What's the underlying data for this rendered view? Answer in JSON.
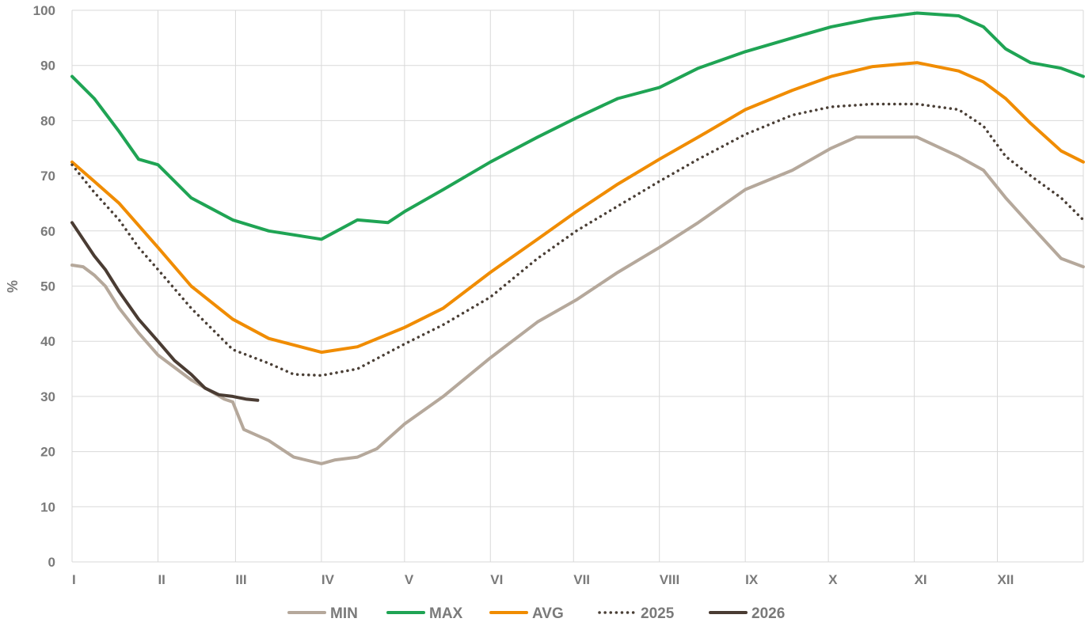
{
  "chart_data": {
    "type": "line",
    "title": "",
    "xlabel": "",
    "ylabel": "%",
    "ylim": [
      0,
      100
    ],
    "xlim_days": [
      0,
      365
    ],
    "y_ticks": [
      0,
      10,
      20,
      30,
      40,
      50,
      60,
      70,
      80,
      90,
      100
    ],
    "x_ticks": [
      {
        "label": "I",
        "day": 0
      },
      {
        "label": "II",
        "day": 31
      },
      {
        "label": "III",
        "day": 59
      },
      {
        "label": "IV",
        "day": 90
      },
      {
        "label": "V",
        "day": 120
      },
      {
        "label": "VI",
        "day": 151
      },
      {
        "label": "VII",
        "day": 181
      },
      {
        "label": "VIII",
        "day": 212
      },
      {
        "label": "IX",
        "day": 243
      },
      {
        "label": "X",
        "day": 273
      },
      {
        "label": "XI",
        "day": 304
      },
      {
        "label": "XII",
        "day": 334
      }
    ],
    "grid": true,
    "legend_position": "bottom",
    "series": [
      {
        "name": "MIN",
        "color": "#b5a89b",
        "style": "solid",
        "points": [
          [
            0,
            53.8
          ],
          [
            4,
            53.5
          ],
          [
            8,
            52
          ],
          [
            12,
            50
          ],
          [
            17,
            46
          ],
          [
            24,
            41.5
          ],
          [
            31,
            37.5
          ],
          [
            43,
            33
          ],
          [
            55,
            29.5
          ],
          [
            58,
            29
          ],
          [
            62,
            24
          ],
          [
            71,
            22
          ],
          [
            80,
            19
          ],
          [
            90,
            17.8
          ],
          [
            95,
            18.5
          ],
          [
            103,
            19
          ],
          [
            110,
            20.5
          ],
          [
            120,
            25
          ],
          [
            134,
            30
          ],
          [
            151,
            37
          ],
          [
            168,
            43.5
          ],
          [
            182,
            47.5
          ],
          [
            197,
            52.5
          ],
          [
            212,
            57
          ],
          [
            226,
            61.5
          ],
          [
            243,
            67.5
          ],
          [
            260,
            71
          ],
          [
            274,
            75
          ],
          [
            283,
            77
          ],
          [
            295,
            77
          ],
          [
            305,
            77
          ],
          [
            320,
            73.5
          ],
          [
            329,
            71
          ],
          [
            337,
            66
          ],
          [
            346,
            61
          ],
          [
            357,
            55
          ],
          [
            365,
            53.5
          ]
        ]
      },
      {
        "name": "MAX",
        "color": "#1fa454",
        "style": "solid",
        "points": [
          [
            0,
            88
          ],
          [
            8,
            84
          ],
          [
            17,
            78
          ],
          [
            24,
            73
          ],
          [
            31,
            72
          ],
          [
            43,
            66
          ],
          [
            58,
            62
          ],
          [
            71,
            60
          ],
          [
            90,
            58.5
          ],
          [
            103,
            62
          ],
          [
            114,
            61.5
          ],
          [
            120,
            63.5
          ],
          [
            134,
            67.5
          ],
          [
            151,
            72.5
          ],
          [
            168,
            77
          ],
          [
            182,
            80.5
          ],
          [
            197,
            84
          ],
          [
            212,
            86
          ],
          [
            226,
            89.5
          ],
          [
            243,
            92.5
          ],
          [
            260,
            95
          ],
          [
            274,
            97
          ],
          [
            289,
            98.5
          ],
          [
            305,
            99.5
          ],
          [
            320,
            99
          ],
          [
            329,
            97
          ],
          [
            337,
            93
          ],
          [
            346,
            90.5
          ],
          [
            357,
            89.5
          ],
          [
            365,
            88
          ]
        ]
      },
      {
        "name": "AVG",
        "color": "#f08c00",
        "style": "solid",
        "points": [
          [
            0,
            72.5
          ],
          [
            8,
            69
          ],
          [
            17,
            65
          ],
          [
            24,
            61
          ],
          [
            31,
            57
          ],
          [
            43,
            50
          ],
          [
            58,
            44
          ],
          [
            71,
            40.5
          ],
          [
            90,
            38
          ],
          [
            103,
            39
          ],
          [
            120,
            42.5
          ],
          [
            134,
            46
          ],
          [
            151,
            52.5
          ],
          [
            168,
            58.5
          ],
          [
            182,
            63.5
          ],
          [
            197,
            68.5
          ],
          [
            212,
            73
          ],
          [
            226,
            77
          ],
          [
            243,
            82
          ],
          [
            260,
            85.5
          ],
          [
            274,
            88
          ],
          [
            289,
            89.8
          ],
          [
            305,
            90.5
          ],
          [
            320,
            89
          ],
          [
            329,
            87
          ],
          [
            337,
            84
          ],
          [
            346,
            79.5
          ],
          [
            357,
            74.5
          ],
          [
            365,
            72.5
          ]
        ]
      },
      {
        "name": "2025",
        "color": "#4a3f36",
        "style": "dotted",
        "points": [
          [
            0,
            72
          ],
          [
            8,
            67
          ],
          [
            17,
            62
          ],
          [
            24,
            57
          ],
          [
            31,
            53
          ],
          [
            43,
            46
          ],
          [
            58,
            38.5
          ],
          [
            71,
            36
          ],
          [
            80,
            34
          ],
          [
            90,
            33.8
          ],
          [
            103,
            35
          ],
          [
            120,
            39.5
          ],
          [
            134,
            43
          ],
          [
            151,
            48
          ],
          [
            168,
            55
          ],
          [
            182,
            60
          ],
          [
            197,
            64.5
          ],
          [
            212,
            69
          ],
          [
            226,
            73
          ],
          [
            243,
            77.5
          ],
          [
            260,
            81
          ],
          [
            274,
            82.5
          ],
          [
            289,
            83
          ],
          [
            305,
            83
          ],
          [
            320,
            82
          ],
          [
            329,
            79
          ],
          [
            337,
            73.5
          ],
          [
            346,
            70
          ],
          [
            357,
            66
          ],
          [
            365,
            62
          ]
        ]
      },
      {
        "name": "2026",
        "color": "#4a3c33",
        "style": "solid",
        "points": [
          [
            0,
            61.5
          ],
          [
            4,
            58.5
          ],
          [
            8,
            55.5
          ],
          [
            12,
            53
          ],
          [
            17,
            49
          ],
          [
            24,
            44
          ],
          [
            31,
            40
          ],
          [
            37,
            36.5
          ],
          [
            43,
            34
          ],
          [
            48,
            31.5
          ],
          [
            53,
            30.3
          ],
          [
            58,
            30
          ],
          [
            63,
            29.5
          ],
          [
            67,
            29.3
          ]
        ]
      }
    ]
  }
}
